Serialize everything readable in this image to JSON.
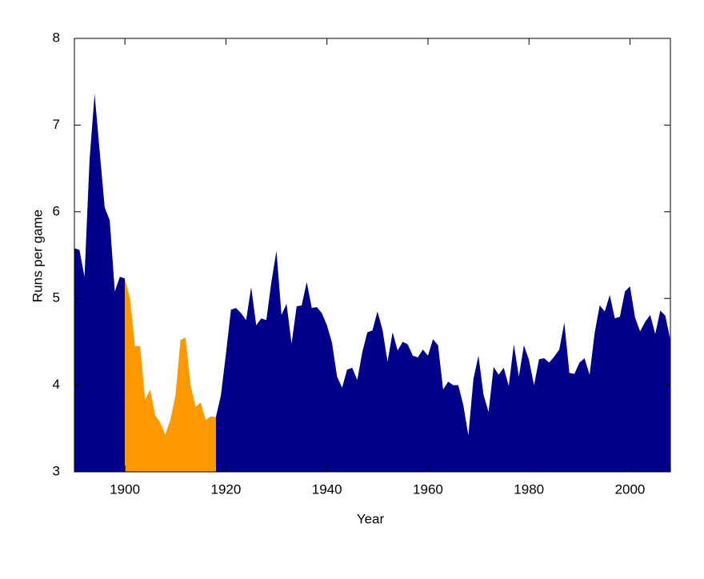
{
  "chart_data": {
    "type": "area",
    "xlabel": "Year",
    "ylabel": "Runs per game",
    "x": [
      1890,
      1891,
      1892,
      1893,
      1894,
      1895,
      1896,
      1897,
      1898,
      1899,
      1900,
      1901,
      1902,
      1903,
      1904,
      1905,
      1906,
      1907,
      1908,
      1909,
      1910,
      1911,
      1912,
      1913,
      1914,
      1915,
      1916,
      1917,
      1918,
      1919,
      1920,
      1921,
      1922,
      1923,
      1924,
      1925,
      1926,
      1927,
      1928,
      1929,
      1930,
      1931,
      1932,
      1933,
      1934,
      1935,
      1936,
      1937,
      1938,
      1939,
      1940,
      1941,
      1942,
      1943,
      1944,
      1945,
      1946,
      1947,
      1948,
      1949,
      1950,
      1951,
      1952,
      1953,
      1954,
      1955,
      1956,
      1957,
      1958,
      1959,
      1960,
      1961,
      1962,
      1963,
      1964,
      1965,
      1966,
      1967,
      1968,
      1969,
      1970,
      1971,
      1972,
      1973,
      1974,
      1975,
      1976,
      1977,
      1978,
      1979,
      1980,
      1981,
      1982,
      1983,
      1984,
      1985,
      1986,
      1987,
      1988,
      1989,
      1990,
      1991,
      1992,
      1993,
      1994,
      1995,
      1996,
      1997,
      1998,
      1999,
      2000,
      2001,
      2002,
      2003,
      2004,
      2005,
      2006,
      2007,
      2008
    ],
    "series": [
      {
        "color": "#00008b",
        "values": [
          5.58,
          5.56,
          5.25,
          6.6,
          7.36,
          6.7,
          6.05,
          5.9,
          5.08,
          5.25,
          5.23,
          null,
          null,
          null,
          null,
          null,
          null,
          null,
          null,
          null,
          null,
          null,
          null,
          null,
          null,
          null,
          null,
          null,
          3.63,
          3.88,
          4.36,
          4.87,
          4.89,
          4.83,
          4.75,
          5.13,
          4.69,
          4.77,
          4.75,
          5.19,
          5.55,
          4.81,
          4.94,
          4.48,
          4.91,
          4.92,
          5.19,
          4.89,
          4.9,
          4.83,
          4.69,
          4.49,
          4.1,
          3.97,
          4.18,
          4.2,
          4.06,
          4.38,
          4.61,
          4.63,
          4.85,
          4.64,
          4.27,
          4.61,
          4.4,
          4.5,
          4.47,
          4.34,
          4.32,
          4.41,
          4.34,
          4.53,
          4.46,
          3.95,
          4.04,
          4.0,
          4.0,
          3.77,
          3.42,
          4.07,
          4.34,
          3.89,
          3.69,
          4.21,
          4.12,
          4.2,
          3.99,
          4.47,
          4.1,
          4.46,
          4.29,
          4.0,
          4.3,
          4.31,
          4.26,
          4.33,
          4.41,
          4.72,
          4.14,
          4.13,
          4.26,
          4.31,
          4.12,
          4.6,
          4.92,
          4.85,
          5.04,
          4.77,
          4.79,
          5.08,
          5.14,
          4.78,
          4.62,
          4.73,
          4.81,
          4.59,
          4.86,
          4.8,
          4.52
        ]
      },
      {
        "color": "#ff9900",
        "values": [
          null,
          null,
          null,
          null,
          null,
          null,
          null,
          null,
          null,
          null,
          5.23,
          5.0,
          4.45,
          4.45,
          3.83,
          3.95,
          3.65,
          3.57,
          3.43,
          3.6,
          3.88,
          4.52,
          4.55,
          4.0,
          3.75,
          3.8,
          3.6,
          3.64,
          3.63,
          null,
          null,
          null,
          null,
          null,
          null,
          null,
          null,
          null,
          null,
          null,
          null,
          null,
          null,
          null,
          null,
          null,
          null,
          null,
          null,
          null,
          null,
          null,
          null,
          null,
          null,
          null,
          null,
          null,
          null,
          null,
          null,
          null,
          null,
          null,
          null,
          null,
          null,
          null,
          null,
          null,
          null,
          null,
          null,
          null,
          null,
          null,
          null,
          null,
          null,
          null,
          null,
          null,
          null,
          null,
          null,
          null,
          null,
          null,
          null,
          null,
          null,
          null,
          null,
          null,
          null,
          null,
          null,
          null,
          null,
          null,
          null,
          null,
          null,
          null,
          null,
          null,
          null,
          null,
          null,
          null,
          null,
          null,
          null,
          null,
          null,
          null,
          null,
          null,
          null
        ]
      }
    ],
    "xlim": [
      1890,
      2008
    ],
    "xticks": [
      1900,
      1920,
      1940,
      1960,
      1980,
      2000
    ],
    "ylim": [
      3,
      8
    ],
    "yticks": [
      3,
      4,
      5,
      6,
      7,
      8
    ]
  }
}
